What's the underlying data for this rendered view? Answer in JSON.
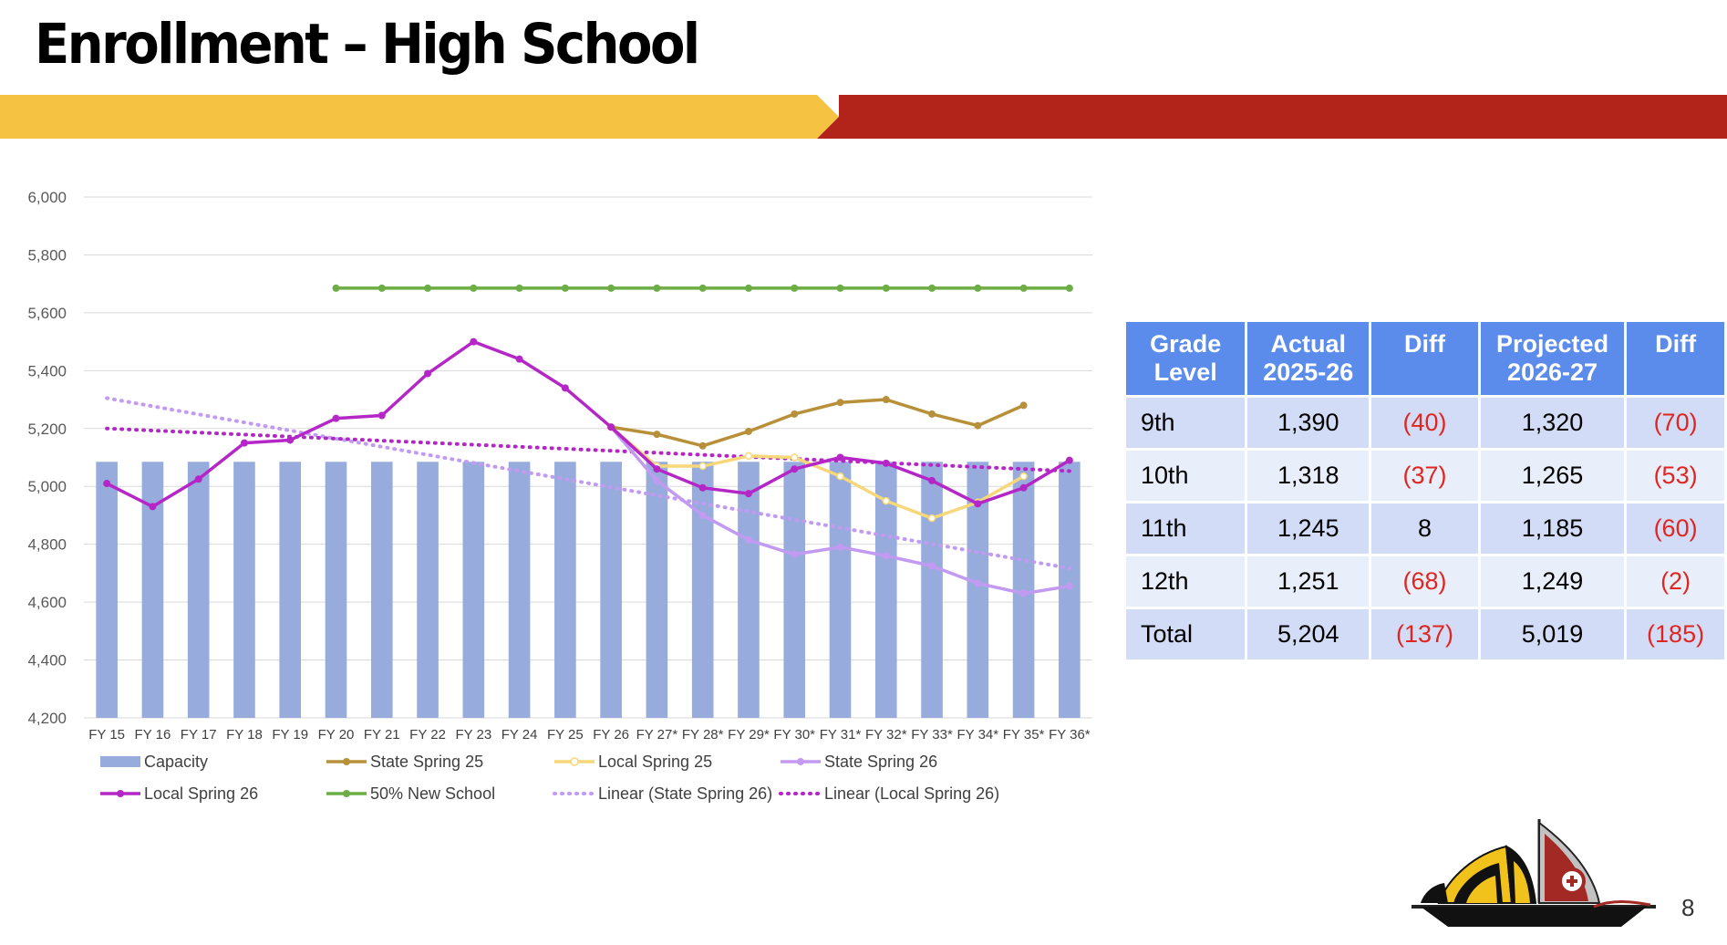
{
  "title": "Enrollment – High School",
  "page_number": "8",
  "colors": {
    "banner_yellow": "#f6c242",
    "banner_red": "#b22419",
    "table_header": "#5b8cec",
    "negative": "#e0261f"
  },
  "chart_data": {
    "type": "bar",
    "categories": [
      "FY 15",
      "FY 16",
      "FY 17",
      "FY 18",
      "FY 19",
      "FY 20",
      "FY 21",
      "FY 22",
      "FY 23",
      "FY 24",
      "FY 25",
      "FY 26",
      "FY 27*",
      "FY 28*",
      "FY 29*",
      "FY 30*",
      "FY 31*",
      "FY 32*",
      "FY 33*",
      "FY 34*",
      "FY 35*",
      "FY 36*"
    ],
    "ylim": [
      4200,
      6000
    ],
    "yticks": [
      4200,
      4400,
      4600,
      4800,
      5000,
      5200,
      5400,
      5600,
      5800,
      6000
    ],
    "grid": true,
    "legend_position": "bottom",
    "series": [
      {
        "name": "Capacity",
        "kind": "bar",
        "color": "#97acdc",
        "values": [
          5085,
          5085,
          5085,
          5085,
          5085,
          5085,
          5085,
          5085,
          5085,
          5085,
          5085,
          5085,
          5085,
          5085,
          5085,
          5085,
          5085,
          5085,
          5085,
          5085,
          5085,
          5085
        ]
      },
      {
        "name": "State Spring 25",
        "kind": "line",
        "color": "#b8903a",
        "marker": "dot",
        "values": [
          null,
          null,
          null,
          null,
          null,
          null,
          null,
          null,
          null,
          null,
          null,
          5205,
          5180,
          5140,
          5190,
          5250,
          5290,
          5300,
          5250,
          5210,
          5280,
          null
        ]
      },
      {
        "name": "Local Spring 25",
        "kind": "line",
        "color": "#f6d77a",
        "marker": "hollow",
        "values": [
          null,
          null,
          null,
          null,
          null,
          null,
          null,
          null,
          null,
          null,
          null,
          5205,
          5070,
          5070,
          5105,
          5100,
          5035,
          4950,
          4890,
          4945,
          5035,
          null
        ]
      },
      {
        "name": "State Spring 26",
        "kind": "line",
        "color": "#c39af2",
        "marker": "dot",
        "values": [
          null,
          null,
          null,
          null,
          null,
          null,
          null,
          null,
          null,
          null,
          null,
          5205,
          5020,
          4900,
          4815,
          4765,
          4790,
          4760,
          4725,
          4665,
          4630,
          4655
        ]
      },
      {
        "name": "Local Spring 26",
        "kind": "line",
        "color": "#b427c6",
        "marker": "dot",
        "values": [
          5010,
          4930,
          5025,
          5150,
          5160,
          5235,
          5245,
          5390,
          5500,
          5440,
          5340,
          5205,
          5060,
          4995,
          4975,
          5060,
          5100,
          5080,
          5020,
          4940,
          4995,
          5090
        ]
      },
      {
        "name": "50% New School",
        "kind": "line",
        "color": "#6cad45",
        "marker": "dot",
        "values": [
          null,
          null,
          null,
          null,
          null,
          5685,
          5685,
          5685,
          5685,
          5685,
          5685,
          5685,
          5685,
          5685,
          5685,
          5685,
          5685,
          5685,
          5685,
          5685,
          5685,
          5685
        ]
      },
      {
        "name": "Linear (State Spring 26)",
        "kind": "trend",
        "color": "#c39af2",
        "values": [
          5305,
          5277,
          5249,
          5221,
          5193,
          5165,
          5137,
          5109,
          5081,
          5053,
          5025,
          4997,
          4969,
          4941,
          4913,
          4885,
          4857,
          4829,
          4801,
          4773,
          4745,
          4717
        ]
      },
      {
        "name": "Linear (Local Spring 26)",
        "kind": "trend",
        "color": "#b427c6",
        "values": [
          5200,
          5193,
          5186,
          5179,
          5172,
          5165,
          5158,
          5151,
          5144,
          5137,
          5130,
          5123,
          5116,
          5109,
          5102,
          5095,
          5088,
          5081,
          5074,
          5067,
          5060,
          5053
        ]
      }
    ]
  },
  "table": {
    "headers": [
      [
        "Grade",
        "Level"
      ],
      [
        "Actual",
        "2025-26"
      ],
      [
        "Diff",
        ""
      ],
      [
        "Projected",
        "2026-27"
      ],
      [
        "Diff",
        ""
      ]
    ],
    "rows": [
      {
        "grade": "9th",
        "actual": "1,390",
        "diff1": "(40)",
        "projected": "1,320",
        "diff2": "(70)"
      },
      {
        "grade": "10th",
        "actual": "1,318",
        "diff1": "(37)",
        "projected": "1,265",
        "diff2": "(53)"
      },
      {
        "grade": "11th",
        "actual": "1,245",
        "diff1": "8",
        "projected": "1,185",
        "diff2": "(60)"
      },
      {
        "grade": "12th",
        "actual": "1,251",
        "diff1": "(68)",
        "projected": "1,249",
        "diff2": "(2)"
      },
      {
        "grade": "Total",
        "actual": "5,204",
        "diff1": "(137)",
        "projected": "5,019",
        "diff2": "(185)"
      }
    ]
  }
}
